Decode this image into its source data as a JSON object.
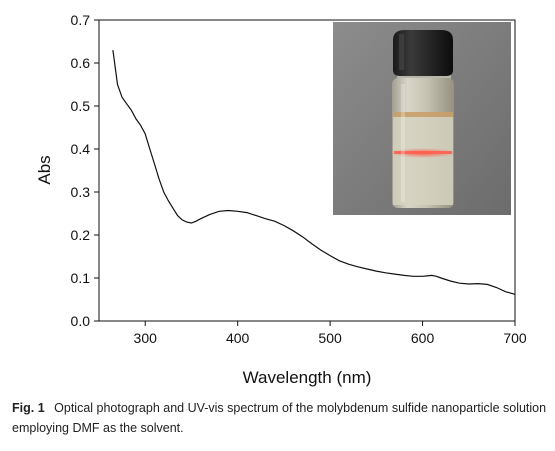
{
  "chart_data": {
    "type": "line",
    "xlabel": "Wavelength (nm)",
    "ylabel": "Abs",
    "xlim": [
      250,
      700
    ],
    "ylim": [
      0.0,
      0.7
    ],
    "xticks": [
      "300",
      "400",
      "500",
      "600",
      "700"
    ],
    "yticks": [
      "0.0",
      "0.1",
      "0.2",
      "0.3",
      "0.4",
      "0.5",
      "0.6",
      "0.7"
    ],
    "grid": false,
    "series": [
      {
        "x": [
          265,
          270,
          275,
          280,
          285,
          290,
          295,
          300,
          305,
          310,
          315,
          320,
          325,
          330,
          335,
          340,
          345,
          350,
          355,
          360,
          370,
          380,
          390,
          400,
          410,
          420,
          430,
          440,
          450,
          460,
          470,
          480,
          490,
          500,
          510,
          520,
          530,
          540,
          550,
          560,
          570,
          580,
          590,
          600,
          605,
          610,
          615,
          620,
          630,
          640,
          650,
          660,
          670,
          680,
          690,
          700
        ],
        "y": [
          0.63,
          0.55,
          0.52,
          0.505,
          0.49,
          0.47,
          0.455,
          0.435,
          0.4,
          0.365,
          0.33,
          0.3,
          0.28,
          0.262,
          0.245,
          0.235,
          0.23,
          0.228,
          0.232,
          0.238,
          0.248,
          0.255,
          0.257,
          0.255,
          0.252,
          0.245,
          0.238,
          0.232,
          0.222,
          0.21,
          0.196,
          0.18,
          0.165,
          0.152,
          0.14,
          0.132,
          0.126,
          0.121,
          0.116,
          0.112,
          0.109,
          0.106,
          0.104,
          0.104,
          0.105,
          0.106,
          0.104,
          0.1,
          0.093,
          0.088,
          0.086,
          0.087,
          0.085,
          0.078,
          0.068,
          0.062
        ]
      }
    ]
  },
  "caption": {
    "label": "Fig. 1",
    "text": "Optical photograph and UV-vis spectrum of the molybdenum sulfide nanoparticle solution employing DMF as the solvent."
  }
}
